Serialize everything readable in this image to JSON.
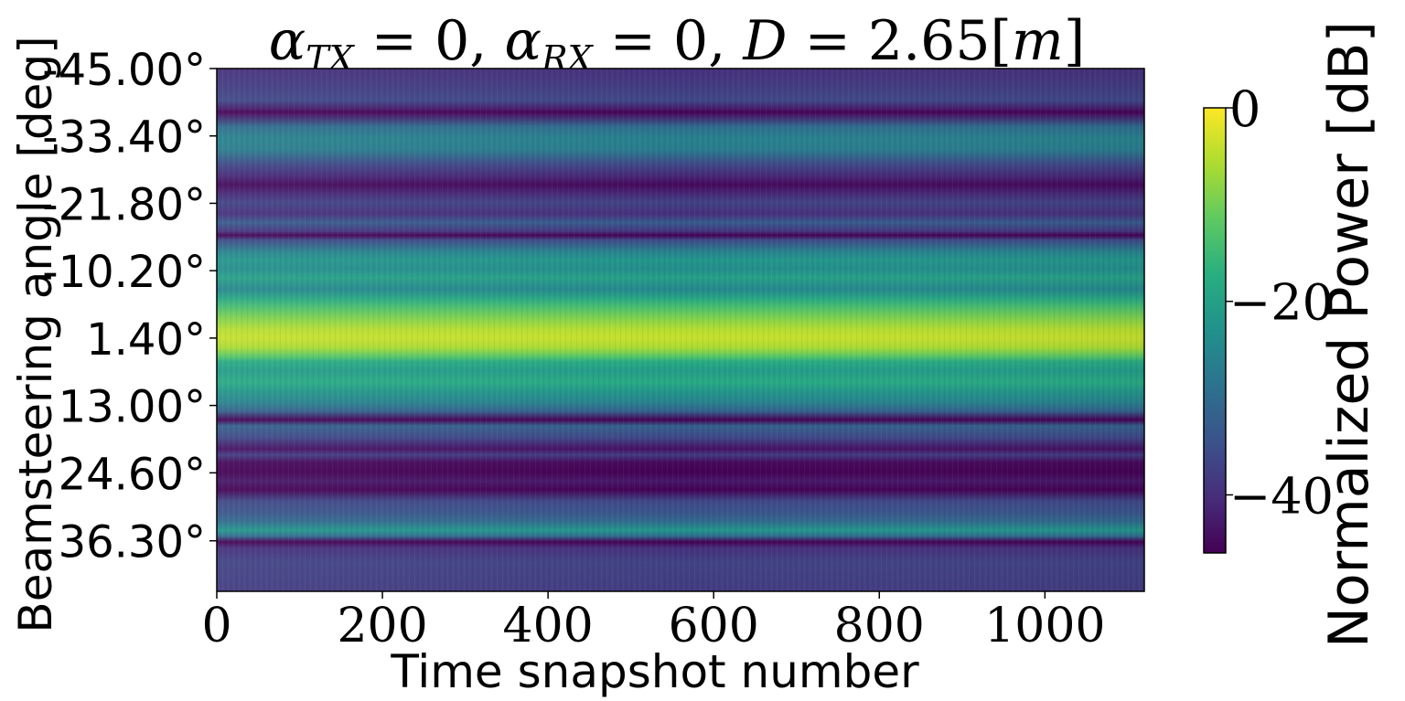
{
  "chart_data": {
    "type": "heatmap",
    "title": "αTX = 0, αRX = 0, D = 2.65[m]",
    "title_parts": {
      "alpha": "α",
      "tx_sub": "TX",
      "rx_sub": "RX",
      "eq_zero_1": " = 0, ",
      "eq_zero_2": " = 0, ",
      "d_label": "D",
      "d_value": " = 2.65[",
      "unit": "m",
      "close": "]"
    },
    "xlabel": "Time snapshot number",
    "ylabel": "Beamsteering angle [deg]",
    "x_ticks": [
      0,
      200,
      400,
      600,
      800,
      1000
    ],
    "x_tick_labels": [
      "0",
      "200",
      "400",
      "600",
      "800",
      "1000"
    ],
    "xlim": [
      0,
      1120
    ],
    "y_tick_labels": [
      "-45.00°",
      "-33.40°",
      "-21.80°",
      "-10.20°",
      "1.40°",
      "13.00°",
      "24.60°",
      "36.30°"
    ],
    "y_tick_values": [
      -45.0,
      -33.4,
      -21.8,
      -10.2,
      1.4,
      13.0,
      24.6,
      36.3
    ],
    "ylim": [
      -45.0,
      45.0
    ],
    "y_inverted": true,
    "colorbar": {
      "label": "Normalized Power [dB]",
      "ticks": [
        0,
        -20,
        -40
      ],
      "tick_labels": [
        "0",
        "−20",
        "−40"
      ],
      "range": [
        -46,
        0
      ],
      "colormap": "viridis"
    },
    "angle_profile_db": [
      {
        "angle": -45.0,
        "db": -40
      },
      {
        "angle": -42.0,
        "db": -38
      },
      {
        "angle": -39.5,
        "db": -36
      },
      {
        "angle": -38.0,
        "db": -43
      },
      {
        "angle": -37.5,
        "db": -47
      },
      {
        "angle": -37.0,
        "db": -43
      },
      {
        "angle": -35.0,
        "db": -30
      },
      {
        "angle": -33.0,
        "db": -26
      },
      {
        "angle": -31.0,
        "db": -27
      },
      {
        "angle": -28.5,
        "db": -36
      },
      {
        "angle": -26.5,
        "db": -41
      },
      {
        "angle": -25.0,
        "db": -45
      },
      {
        "angle": -23.5,
        "db": -41
      },
      {
        "angle": -22.0,
        "db": -37
      },
      {
        "angle": -20.0,
        "db": -40
      },
      {
        "angle": -18.5,
        "db": -33
      },
      {
        "angle": -17.0,
        "db": -39
      },
      {
        "angle": -16.3,
        "db": -46
      },
      {
        "angle": -15.5,
        "db": -36
      },
      {
        "angle": -13.5,
        "db": -26
      },
      {
        "angle": -12.0,
        "db": -22
      },
      {
        "angle": -10.5,
        "db": -24
      },
      {
        "angle": -9.0,
        "db": -20
      },
      {
        "angle": -7.0,
        "db": -25
      },
      {
        "angle": -5.5,
        "db": -19
      },
      {
        "angle": -4.0,
        "db": -14
      },
      {
        "angle": -2.0,
        "db": -9
      },
      {
        "angle": 0.0,
        "db": -5
      },
      {
        "angle": 1.4,
        "db": -4
      },
      {
        "angle": 3.0,
        "db": -6
      },
      {
        "angle": 4.5,
        "db": -12
      },
      {
        "angle": 5.5,
        "db": -18
      },
      {
        "angle": 7.0,
        "db": -21
      },
      {
        "angle": 9.0,
        "db": -18
      },
      {
        "angle": 10.5,
        "db": -22
      },
      {
        "angle": 12.5,
        "db": -26
      },
      {
        "angle": 14.0,
        "db": -32
      },
      {
        "angle": 15.5,
        "db": -46
      },
      {
        "angle": 16.5,
        "db": -32
      },
      {
        "angle": 18.5,
        "db": -36
      },
      {
        "angle": 20.5,
        "db": -44
      },
      {
        "angle": 21.5,
        "db": -38
      },
      {
        "angle": 22.8,
        "db": -45
      },
      {
        "angle": 24.5,
        "db": -47
      },
      {
        "angle": 26.0,
        "db": -43
      },
      {
        "angle": 27.5,
        "db": -46
      },
      {
        "angle": 29.5,
        "db": -36
      },
      {
        "angle": 31.5,
        "db": -34
      },
      {
        "angle": 33.0,
        "db": -30
      },
      {
        "angle": 34.5,
        "db": -22
      },
      {
        "angle": 35.5,
        "db": -30
      },
      {
        "angle": 36.5,
        "db": -46
      },
      {
        "angle": 37.5,
        "db": -40
      },
      {
        "angle": 40.0,
        "db": -37
      },
      {
        "angle": 45.0,
        "db": -38
      }
    ]
  }
}
